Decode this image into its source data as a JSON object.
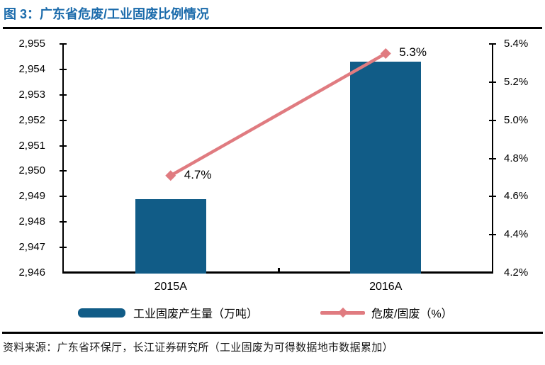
{
  "header": {
    "title": "图 3：广东省危废/工业固废比例情况"
  },
  "chart_data": {
    "type": "bar",
    "subtype": "combo bar + line, dual y-axis",
    "categories": [
      "2015A",
      "2016A"
    ],
    "series": [
      {
        "name": "工业固废产生量（万吨）",
        "chart_type": "bar",
        "axis": "left",
        "values": [
          2948.9,
          2954.3
        ],
        "color": "#115C87"
      },
      {
        "name": "危废/固废（%）",
        "chart_type": "line",
        "axis": "right",
        "values": [
          4.71,
          5.35
        ],
        "point_labels": [
          "4.7%",
          "5.3%"
        ],
        "marker": "diamond",
        "color": "#E07B80"
      }
    ],
    "left_axis": {
      "min": 2946,
      "max": 2955,
      "step": 1,
      "tick_labels": [
        "2,955",
        "2,954",
        "2,953",
        "2,952",
        "2,951",
        "2,950",
        "2,949",
        "2,948",
        "2,947",
        "2,946"
      ]
    },
    "right_axis": {
      "min": 4.2,
      "max": 5.4,
      "step": 0.2,
      "tick_labels": [
        "5.4%",
        "5.2%",
        "5.0%",
        "4.8%",
        "4.6%",
        "4.4%",
        "4.2%"
      ]
    },
    "grid": false,
    "legend_position": "bottom"
  },
  "colors": {
    "title": "#1B6BAB",
    "axis": "#000000",
    "bar": "#115C87",
    "line": "#E07B80"
  },
  "footer": {
    "source": "资料来源：广东省环保厅，长江证券研究所（工业固废为可得数据地市数据累加）"
  }
}
